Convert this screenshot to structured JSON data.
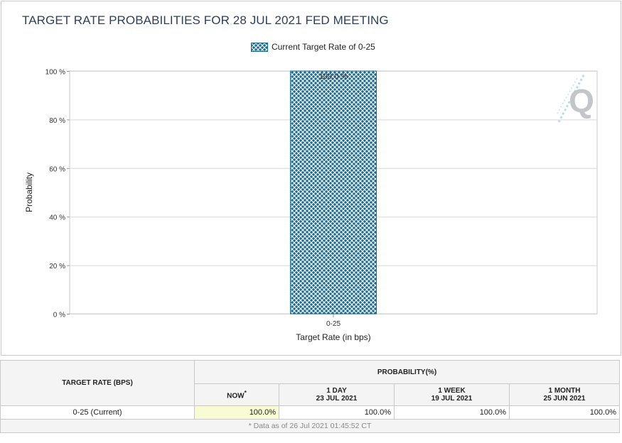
{
  "chart": {
    "title": "TARGET RATE PROBABILITIES FOR 28 JUL 2021 FED MEETING",
    "legend_label": "Current Target Rate of 0-25",
    "watermark": "Q"
  },
  "chart_data": {
    "type": "bar",
    "categories": [
      "0-25"
    ],
    "series": [
      {
        "name": "Current Target Rate of 0-25",
        "values": [
          100.0
        ]
      }
    ],
    "data_labels": [
      "100.0 %"
    ],
    "xlabel": "Target Rate (in bps)",
    "ylabel": "Probability",
    "ylim": [
      0,
      100
    ],
    "yticks": [
      0,
      20,
      40,
      60,
      80,
      100
    ],
    "ytick_labels": [
      "0 %",
      "20 %",
      "40 %",
      "60 %",
      "80 %",
      "100 %"
    ],
    "grid": true,
    "legend_position": "top-center",
    "bar_color": "#1a6b9a"
  },
  "table": {
    "col_header_rate": "TARGET RATE (BPS)",
    "col_header_prob": "PROBABILITY(%)",
    "sub_headers": [
      {
        "line1": "NOW",
        "line2": "",
        "marker": "*"
      },
      {
        "line1": "1 DAY",
        "line2": "23 JUL 2021",
        "marker": ""
      },
      {
        "line1": "1 WEEK",
        "line2": "19 JUL 2021",
        "marker": ""
      },
      {
        "line1": "1 MONTH",
        "line2": "25 JUN 2021",
        "marker": ""
      }
    ],
    "rows": [
      {
        "rate": "0-25 (Current)",
        "values": [
          "100.0%",
          "100.0%",
          "100.0%",
          "100.0%"
        ]
      }
    ],
    "footnote": "* Data as of 26 Jul 2021 01:45:52 CT",
    "highlight_color": "#f8fbd3"
  }
}
